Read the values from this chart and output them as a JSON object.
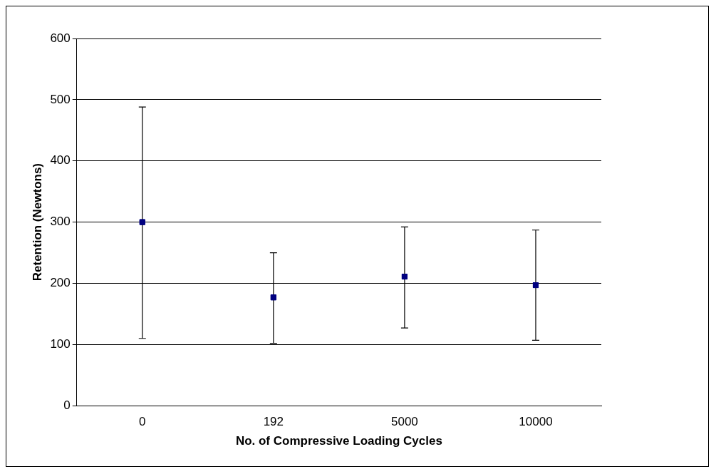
{
  "chart_data": {
    "type": "scatter",
    "xlabel": "No. of Compressive Loading Cycles",
    "ylabel": "Retention (Newtons)",
    "categories": [
      "0",
      "192",
      "5000",
      "10000"
    ],
    "series": [
      {
        "color": "#000080",
        "values": [
          300,
          177,
          211,
          197
        ],
        "errors": [
          [
            110,
            488
          ],
          [
            102,
            250
          ],
          [
            127,
            292
          ],
          [
            107,
            287
          ]
        ]
      }
    ],
    "ylim": [
      0,
      600
    ],
    "yticks": [
      0,
      100,
      200,
      300,
      400,
      500,
      600
    ],
    "grid": "y",
    "marker": "square",
    "legend": false
  }
}
